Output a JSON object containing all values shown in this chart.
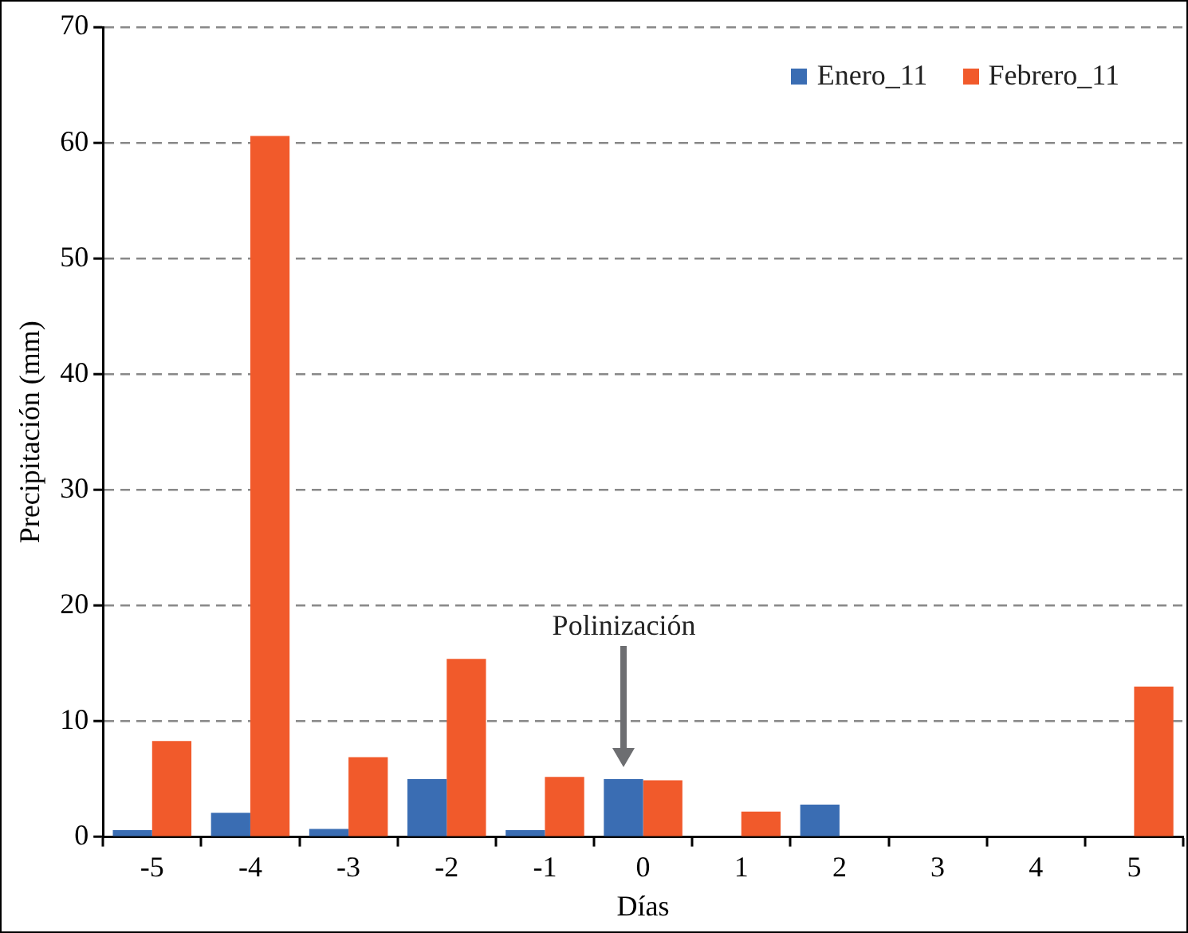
{
  "chart_data": {
    "type": "bar",
    "xlabel": "Días",
    "ylabel": "Precipitación (mm)",
    "categories": [
      "-5",
      "-4",
      "-3",
      "-2",
      "-1",
      "0",
      "1",
      "2",
      "3",
      "4",
      "5"
    ],
    "series": [
      {
        "name": "Enero_11",
        "color": "#3a6db3",
        "values": [
          0.6,
          2.1,
          0.7,
          5.0,
          0.6,
          5.0,
          0,
          2.8,
          0,
          0,
          0
        ]
      },
      {
        "name": "Febrero_11",
        "color": "#f15a2b",
        "values": [
          8.3,
          60.6,
          6.9,
          15.4,
          5.2,
          4.9,
          2.2,
          0,
          0,
          0,
          13.0
        ]
      }
    ],
    "ylim": [
      0,
      70
    ],
    "yticks": [
      0,
      10,
      20,
      30,
      40,
      50,
      60,
      70
    ],
    "grid": "y",
    "legend": "top right",
    "annotations": [
      "Polinización"
    ]
  }
}
